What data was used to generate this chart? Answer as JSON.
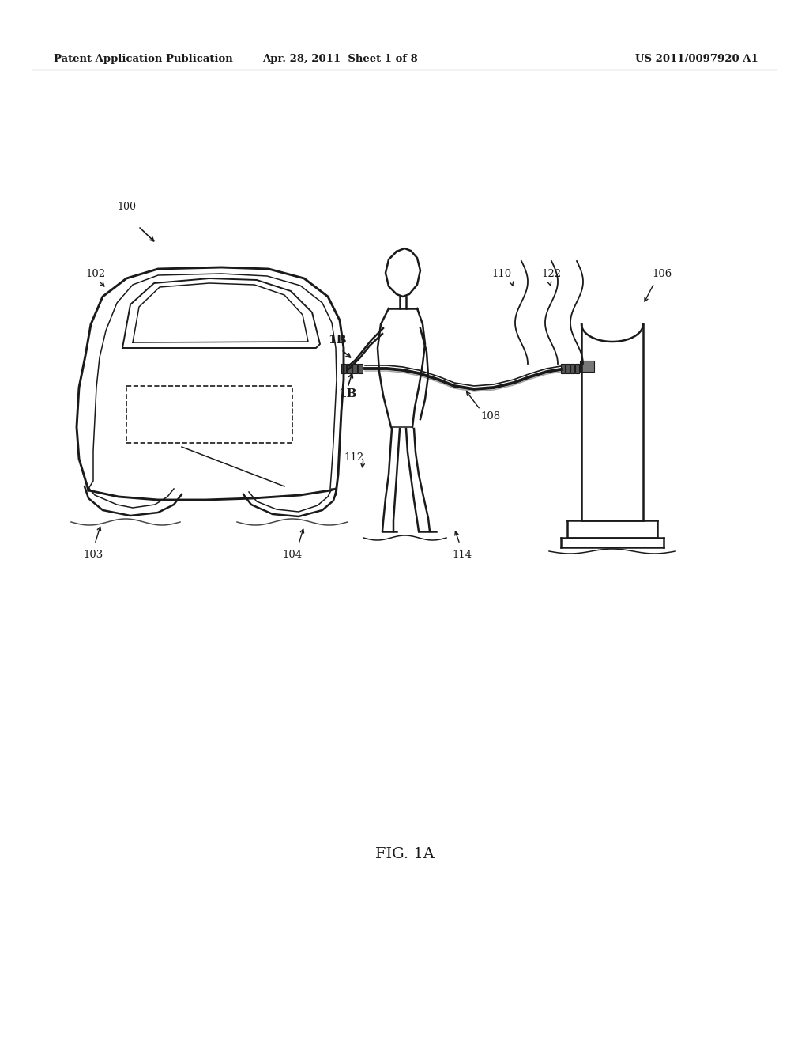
{
  "bg_color": "#ffffff",
  "line_color": "#1a1a1a",
  "header_left": "Patent Application Publication",
  "header_center": "Apr. 28, 2011  Sheet 1 of 8",
  "header_right": "US 2011/0097920 A1",
  "fig_label": "FIG. 1A",
  "lw_main": 1.8,
  "lw_thin": 1.1
}
